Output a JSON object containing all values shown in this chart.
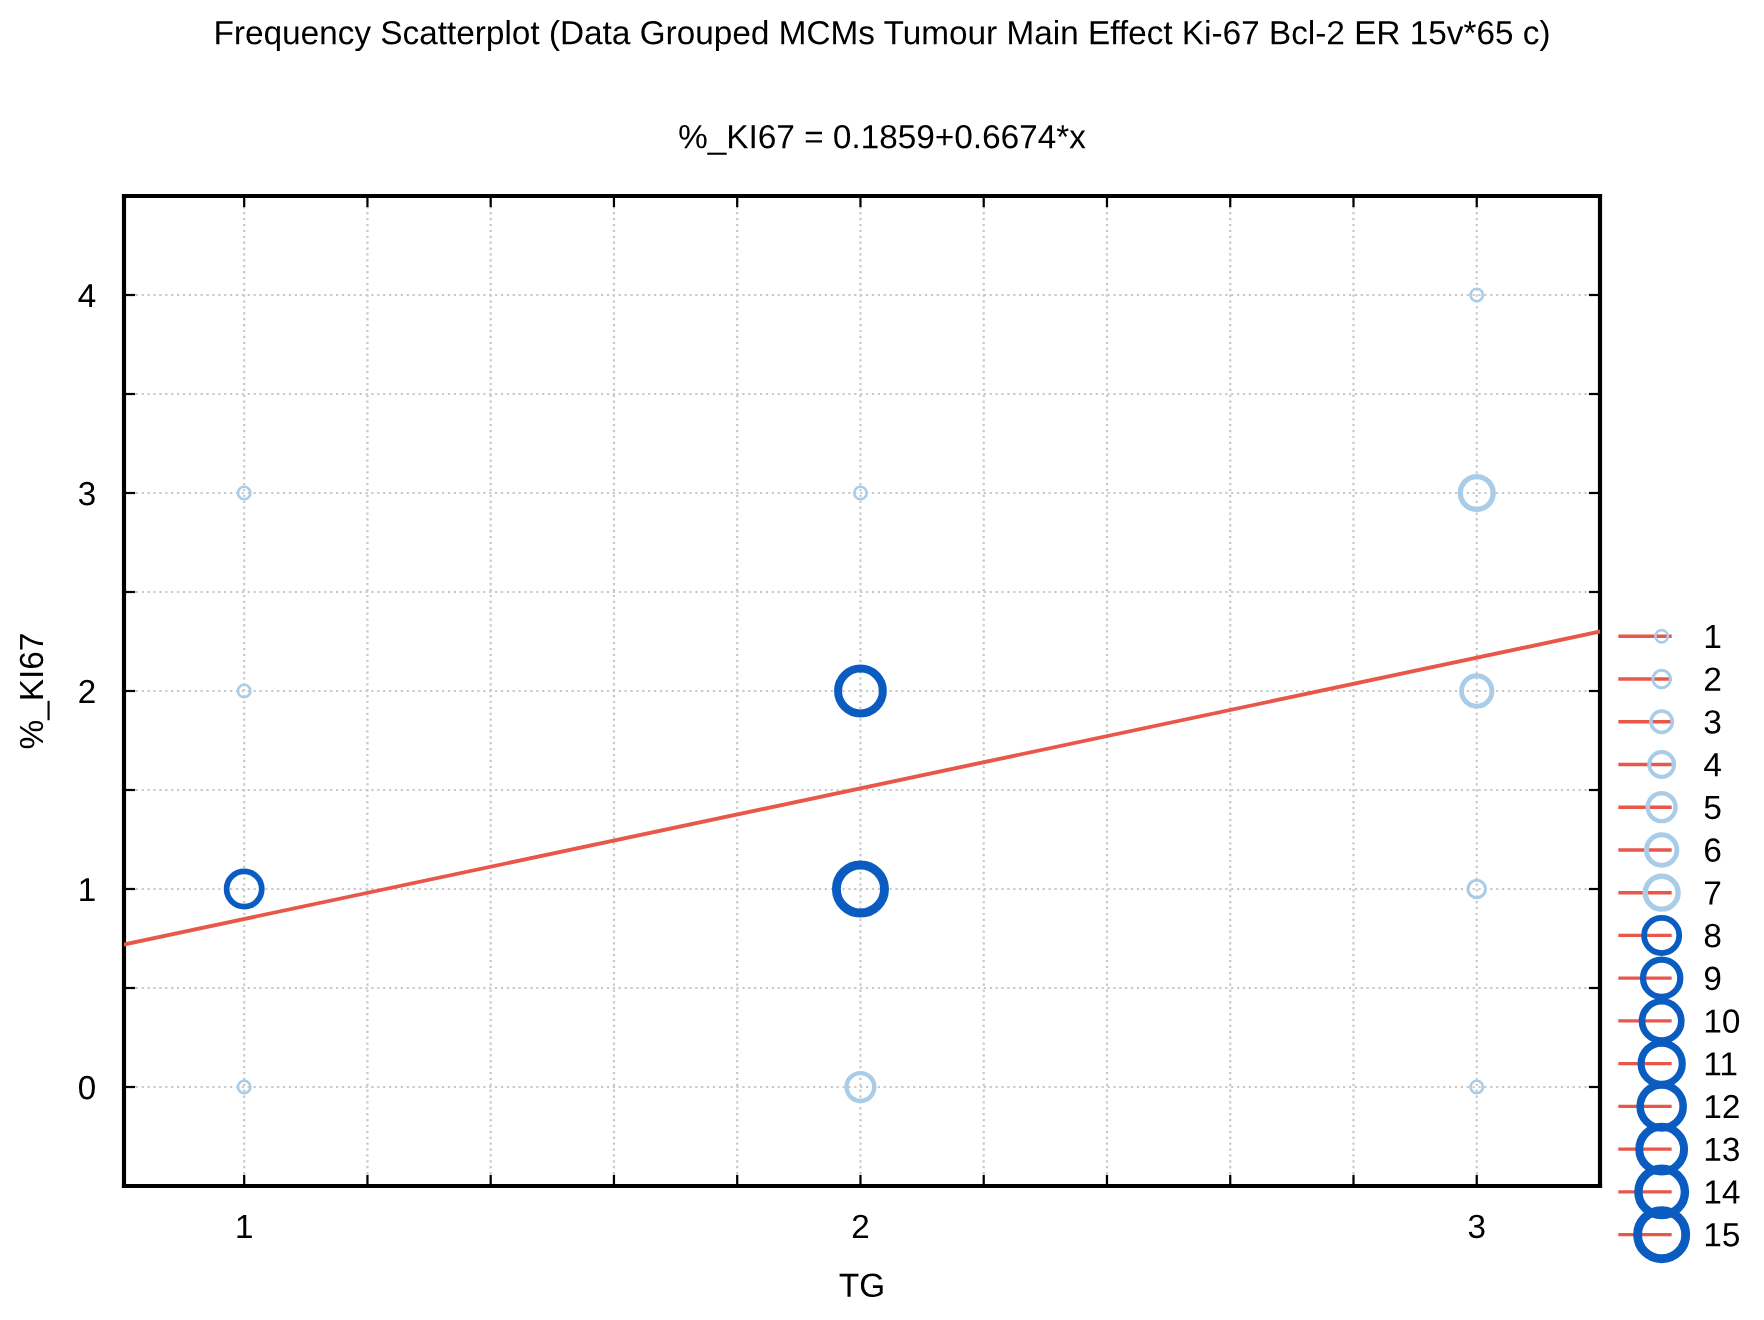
{
  "chart_data": {
    "type": "bubble",
    "title": "Frequency Scatterplot (Data Grouped MCMs Tumour Main Effect Ki-67 Bcl-2 ER 15v*65 c)",
    "subtitle": "%_KI67 = 0.1859+0.6674*x",
    "xlabel": "TG",
    "ylabel": "%_KI67",
    "series": [
      {
        "x": [
          1,
          1,
          1,
          1,
          2,
          2,
          2,
          2,
          3,
          3,
          3,
          3,
          3
        ],
        "values": [
          0,
          1,
          2,
          3,
          0,
          1,
          2,
          3,
          0,
          1,
          2,
          3,
          4
        ],
        "sizes": [
          1,
          8,
          1,
          1,
          5,
          15,
          13,
          1,
          1,
          2,
          6,
          7,
          1
        ],
        "colors": [
          "#a9cde9",
          "#0a5cc0",
          "#a9cde9",
          "#a9cde9",
          "#a9cde9",
          "#0a5cc0",
          "#0a5cc0",
          "#a9cde9",
          "#a9cde9",
          "#a9cde9",
          "#a9cde9",
          "#a9cde9",
          "#a9cde9"
        ]
      },
      {
        "type": "line",
        "color": "#e8574a",
        "x": [
          0.805,
          3.2
        ],
        "values": [
          0.72,
          2.3
        ]
      }
    ],
    "size_legend": [
      1,
      2,
      3,
      4,
      5,
      6,
      7,
      8,
      9,
      10,
      11,
      12,
      13,
      14,
      15
    ],
    "grid": true,
    "line_style": "solid",
    "xlim": [
      0.805,
      3.2
    ],
    "ylim": [
      -0.5,
      4.5
    ],
    "xticks": [
      1,
      {
        "value": 1.2,
        "label": null
      },
      {
        "value": 1.4,
        "label": null
      },
      {
        "value": 1.6,
        "label": null
      },
      {
        "value": 1.8,
        "label": null
      },
      2,
      {
        "value": 2.2,
        "label": null
      },
      {
        "value": 2.4,
        "label": null
      },
      {
        "value": 2.6,
        "label": null
      },
      {
        "value": 2.8,
        "label": null
      },
      3,
      {
        "value": 3.2,
        "label": null
      }
    ],
    "yticks": [
      {
        "value": -0.5,
        "label": null
      },
      0,
      {
        "value": 0.5,
        "label": null
      },
      1,
      {
        "value": 1.5,
        "label": null
      },
      2,
      {
        "value": 2.5,
        "label": null
      },
      3,
      {
        "value": 3.5,
        "label": null
      },
      4,
      {
        "value": 4.5,
        "label": null
      }
    ]
  }
}
